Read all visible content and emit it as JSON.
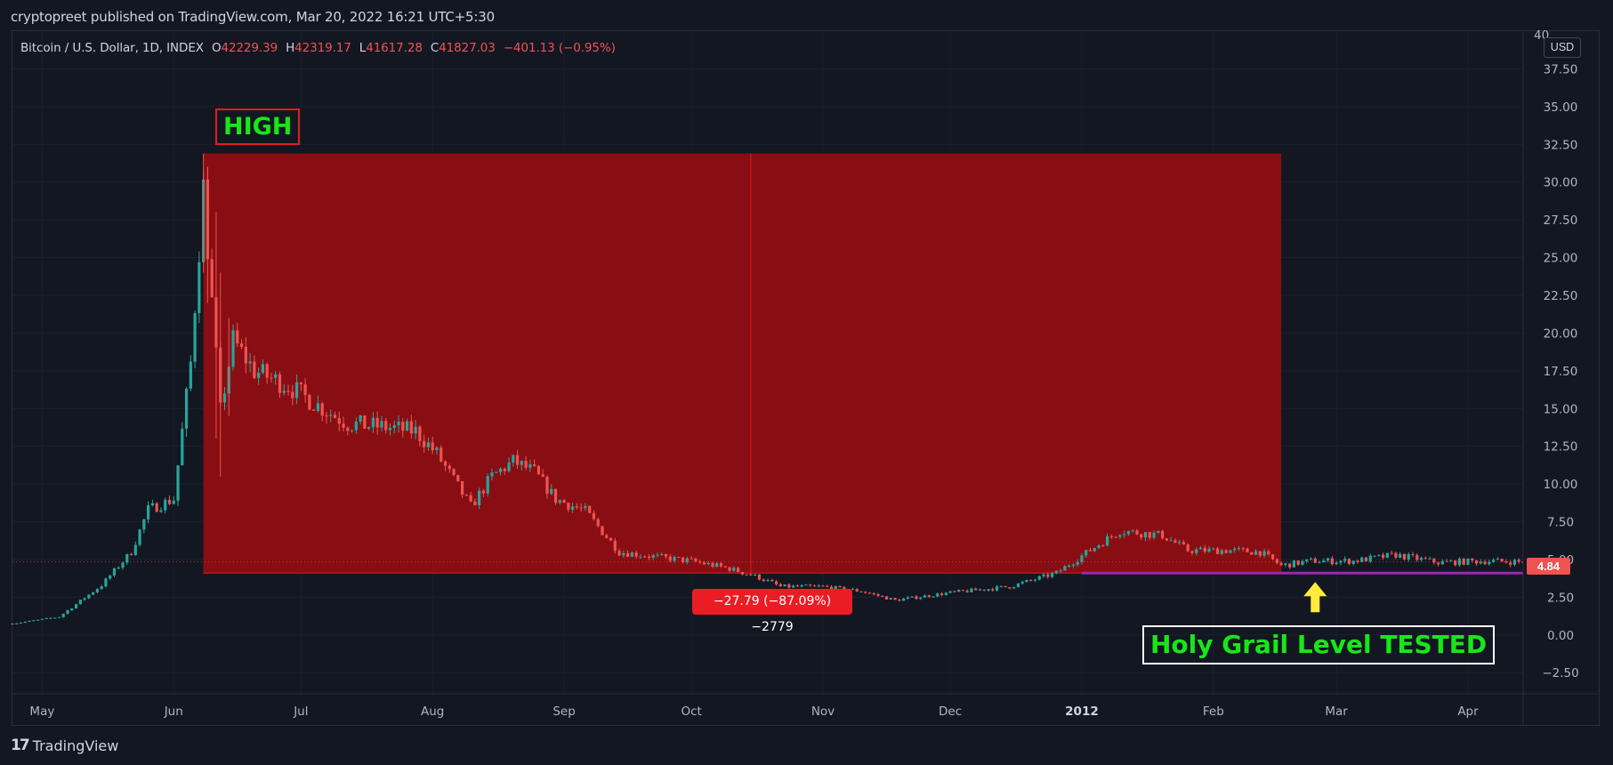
{
  "header": {
    "publisher": "cryptopreet published on TradingView.com, Mar 20, 2022 16:21 UTC+5:30"
  },
  "legend": {
    "symbol": "Bitcoin / U.S. Dollar, 1D, INDEX",
    "open_label": "O",
    "open": "42229.39",
    "high_label": "H",
    "high": "42319.17",
    "low_label": "L",
    "low": "41617.28",
    "close_label": "C",
    "close": "41827.03",
    "change": "−401.13 (−0.95%)"
  },
  "axis": {
    "currency": "USD",
    "top_tick_partial": "40"
  },
  "annotations": {
    "high_label": "HIGH",
    "grail_label": "Holy Grail Level TESTED",
    "measure_label": "−27.79 (−87.09%) −2779",
    "last_price": "4.84"
  },
  "footer": {
    "brand": "TradingView",
    "logo_glyph": "17"
  },
  "colors": {
    "background": "#131722",
    "up": "#26a69a",
    "down": "#ef5350",
    "zone": "#8b0e14",
    "support_line": "#9c27b0",
    "arrow": "#ffeb3b",
    "annotation_text": "#19e619"
  },
  "chart_data": {
    "type": "candlestick",
    "title": "Bitcoin / U.S. Dollar, 1D, INDEX",
    "xlabel": "",
    "ylabel": "",
    "y_ticks": [
      "37.50",
      "35.00",
      "32.50",
      "30.00",
      "27.50",
      "25.00",
      "22.50",
      "20.00",
      "17.50",
      "15.00",
      "12.50",
      "10.00",
      "7.50",
      "5.00",
      "2.50",
      "0.00",
      "−2.50"
    ],
    "y_tick_values": [
      37.5,
      35,
      32.5,
      30,
      27.5,
      25,
      22.5,
      20,
      17.5,
      15,
      12.5,
      10,
      7.5,
      5,
      2.5,
      0,
      -2.5
    ],
    "x_ticks": [
      "May",
      "Jun",
      "Jul",
      "Aug",
      "Sep",
      "Oct",
      "Nov",
      "Dec",
      "2012",
      "Feb",
      "Mar",
      "Apr"
    ],
    "x_tick_bold": [
      "2012"
    ],
    "ylim": [
      -3.9,
      40
    ],
    "start_date": "2011-04-24",
    "end_date": "2012-04-14",
    "series_points": [
      [
        "2011-04-24",
        0.75
      ],
      [
        "2011-05-05",
        1.2
      ],
      [
        "2011-05-15",
        3.3
      ],
      [
        "2011-05-22",
        5.5
      ],
      [
        "2011-05-26",
        8.3
      ],
      [
        "2011-06-01",
        9.0
      ],
      [
        "2011-06-05",
        18.0
      ],
      [
        "2011-06-08",
        29.6
      ],
      [
        "2011-06-10",
        22.0
      ],
      [
        "2011-06-12",
        14.8
      ],
      [
        "2011-06-15",
        19.5
      ],
      [
        "2011-06-20",
        17.5
      ],
      [
        "2011-06-28",
        16.5
      ],
      [
        "2011-07-05",
        15.2
      ],
      [
        "2011-07-12",
        14.0
      ],
      [
        "2011-07-20",
        13.8
      ],
      [
        "2011-07-28",
        13.5
      ],
      [
        "2011-08-02",
        12.0
      ],
      [
        "2011-08-10",
        8.5
      ],
      [
        "2011-08-15",
        10.5
      ],
      [
        "2011-08-20",
        11.5
      ],
      [
        "2011-08-25",
        10.8
      ],
      [
        "2011-08-30",
        9.0
      ],
      [
        "2011-09-06",
        8.2
      ],
      [
        "2011-09-14",
        5.5
      ],
      [
        "2011-09-22",
        5.2
      ],
      [
        "2011-10-01",
        4.9
      ],
      [
        "2011-10-10",
        4.4
      ],
      [
        "2011-10-17",
        3.8
      ],
      [
        "2011-10-22",
        3.2
      ],
      [
        "2011-11-01",
        3.2
      ],
      [
        "2011-11-10",
        2.9
      ],
      [
        "2011-11-18",
        2.3
      ],
      [
        "2011-12-01",
        2.8
      ],
      [
        "2011-12-15",
        3.2
      ],
      [
        "2011-12-26",
        4.1
      ],
      [
        "2012-01-05",
        6.0
      ],
      [
        "2012-01-10",
        6.9
      ],
      [
        "2012-01-20",
        6.6
      ],
      [
        "2012-01-26",
        5.6
      ],
      [
        "2012-02-05",
        5.6
      ],
      [
        "2012-02-12",
        5.5
      ],
      [
        "2012-02-17",
        4.6
      ],
      [
        "2012-02-24",
        4.9
      ],
      [
        "2012-03-05",
        4.9
      ],
      [
        "2012-03-15",
        5.3
      ],
      [
        "2012-03-25",
        4.8
      ],
      [
        "2012-04-05",
        4.9
      ],
      [
        "2012-04-14",
        4.84
      ]
    ],
    "high": {
      "date": "2011-06-08",
      "value": 31.9
    },
    "drawdown_zone": {
      "start": "2011-06-08",
      "end": "2012-02-17",
      "top": 31.9,
      "bottom": 4.1,
      "mid": "2011-10-15"
    },
    "support_level": {
      "value": 4.1,
      "start": "2012-01-01",
      "end": "2012-04-14"
    },
    "arrow_date": "2012-02-25",
    "last_price": 4.84
  }
}
